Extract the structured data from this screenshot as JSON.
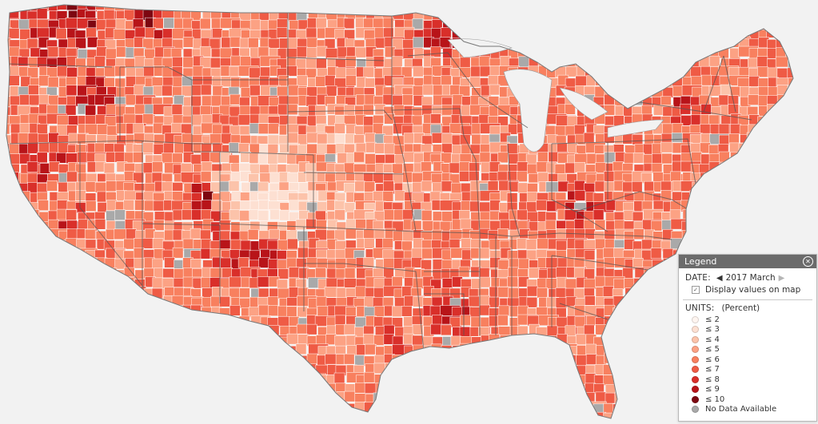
{
  "map": {
    "colors": {
      "background": "#f2f2f2",
      "border": "#ffffff",
      "state_border": "#555555",
      "no_data": "#a9a9a9"
    }
  },
  "legend": {
    "title": "Legend",
    "close_icon": "close-icon",
    "date_label": "DATE:",
    "date_value": "2017 March",
    "prev_icon": "triangle-left-icon",
    "next_icon": "triangle-right-icon",
    "display_values_label": "Display values on map",
    "units_label": "UNITS:",
    "units_value": "(Percent)",
    "bins": [
      {
        "label": "≤ 2",
        "color": "#fff5f0"
      },
      {
        "label": "≤ 3",
        "color": "#fde0d2"
      },
      {
        "label": "≤ 4",
        "color": "#fcc3aa"
      },
      {
        "label": "≤ 5",
        "color": "#fca284"
      },
      {
        "label": "≤ 6",
        "color": "#f8805f"
      },
      {
        "label": "≤ 7",
        "color": "#ef5b45"
      },
      {
        "label": "≤ 8",
        "color": "#d92f2a"
      },
      {
        "label": "≤ 9",
        "color": "#b81419"
      },
      {
        "label": "≤ 10",
        "color": "#7d0711"
      },
      {
        "label": "No Data Available",
        "color": "#a9a9a9"
      }
    ]
  }
}
